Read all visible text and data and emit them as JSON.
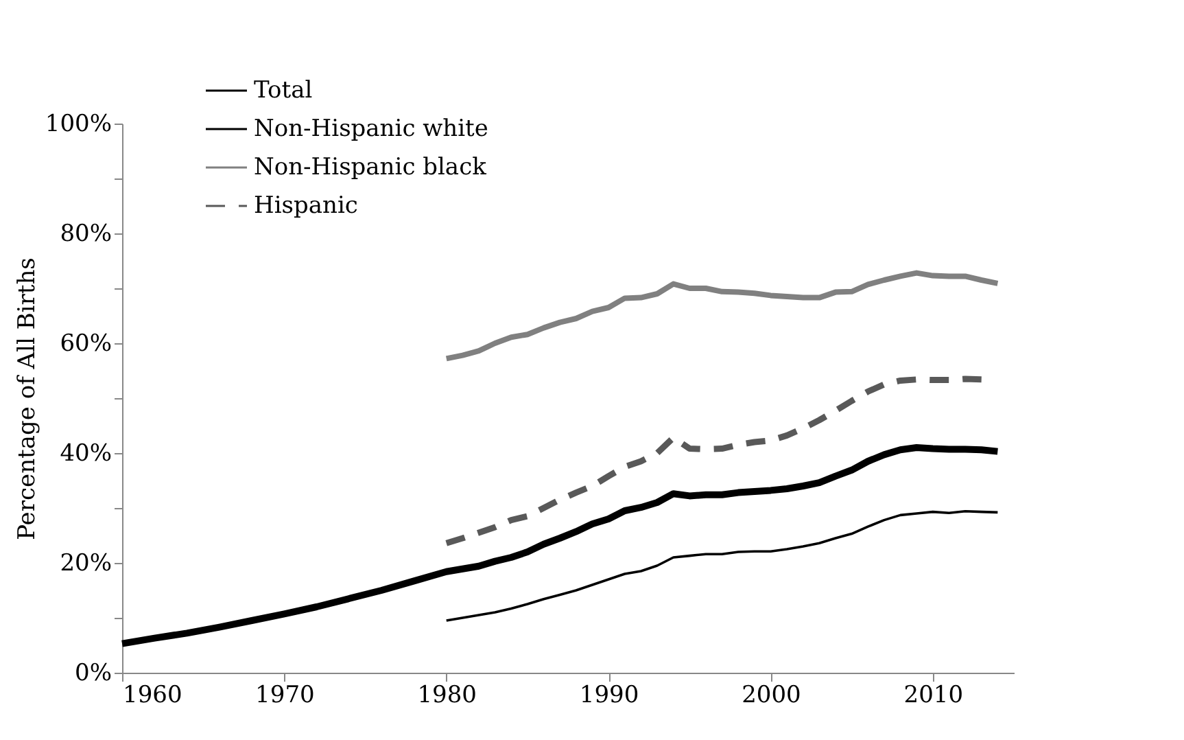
{
  "chart_data": {
    "type": "line",
    "ylabel": "Percentage of All Births",
    "xlim": [
      1960,
      2015
    ],
    "xticks": [
      1960,
      1970,
      1980,
      1990,
      2000,
      2010
    ],
    "ylim": [
      0,
      100
    ],
    "yticks": [
      {
        "value": 0,
        "label": "0%"
      },
      {
        "value": 10,
        "label": null
      },
      {
        "value": 20,
        "label": "20%"
      },
      {
        "value": 30,
        "label": null
      },
      {
        "value": 40,
        "label": "40%"
      },
      {
        "value": 50,
        "label": null
      },
      {
        "value": 60,
        "label": "60%"
      },
      {
        "value": 70,
        "label": null
      },
      {
        "value": 80,
        "label": "80%"
      },
      {
        "value": 90,
        "label": null
      },
      {
        "value": 100,
        "label": "100%"
      }
    ],
    "grid": false,
    "legend": "top left",
    "marker": "none",
    "series": [
      {
        "name": "Total",
        "color": "#000000",
        "line_style": "solid",
        "x": [
          1960,
          1962,
          1964,
          1966,
          1968,
          1970,
          1972,
          1974,
          1976,
          1978,
          1980,
          1981,
          1982,
          1983,
          1984,
          1985,
          1986,
          1987,
          1988,
          1989,
          1990,
          1991,
          1992,
          1993,
          1994,
          1995,
          1996,
          1997,
          1998,
          1999,
          2000,
          2001,
          2002,
          2003,
          2004,
          2005,
          2006,
          2007,
          2008,
          2009,
          2010,
          2011,
          2012,
          2013,
          2014
        ],
        "values": [
          5.3,
          6.3,
          7.2,
          8.3,
          9.5,
          10.7,
          12.0,
          13.5,
          15.0,
          16.7,
          18.4,
          18.9,
          19.4,
          20.3,
          21.0,
          22.0,
          23.4,
          24.5,
          25.7,
          27.1,
          28.0,
          29.5,
          30.1,
          31.0,
          32.6,
          32.2,
          32.4,
          32.4,
          32.8,
          33.0,
          33.2,
          33.5,
          34.0,
          34.6,
          35.8,
          36.9,
          38.5,
          39.7,
          40.6,
          41.0,
          40.8,
          40.7,
          40.7,
          40.6,
          40.3
        ]
      },
      {
        "name": "Non-Hispanic white",
        "color": "#000000",
        "line_style": "solid",
        "x": [
          1980,
          1981,
          1982,
          1983,
          1984,
          1985,
          1986,
          1987,
          1988,
          1989,
          1990,
          1991,
          1992,
          1993,
          1994,
          1995,
          1996,
          1997,
          1998,
          1999,
          2000,
          2001,
          2002,
          2003,
          2004,
          2005,
          2006,
          2007,
          2008,
          2009,
          2010,
          2011,
          2012,
          2013,
          2014
        ],
        "values": [
          9.5,
          10.0,
          10.5,
          11.0,
          11.7,
          12.5,
          13.4,
          14.2,
          15.0,
          16.0,
          17.0,
          18.0,
          18.5,
          19.5,
          21.0,
          21.3,
          21.6,
          21.6,
          22.0,
          22.1,
          22.1,
          22.5,
          23.0,
          23.6,
          24.5,
          25.3,
          26.6,
          27.8,
          28.7,
          29.0,
          29.3,
          29.1,
          29.4,
          29.3,
          29.2
        ]
      },
      {
        "name": "Non-Hispanic black",
        "color": "#808080",
        "line_style": "solid",
        "x": [
          1980,
          1981,
          1982,
          1983,
          1984,
          1985,
          1986,
          1987,
          1988,
          1989,
          1990,
          1991,
          1992,
          1993,
          1994,
          1995,
          1996,
          1997,
          1998,
          1999,
          2000,
          2001,
          2002,
          2003,
          2004,
          2005,
          2006,
          2007,
          2008,
          2009,
          2010,
          2011,
          2012,
          2013,
          2014
        ],
        "values": [
          57.2,
          57.8,
          58.6,
          60.0,
          61.1,
          61.6,
          62.8,
          63.8,
          64.5,
          65.8,
          66.5,
          68.2,
          68.3,
          69.0,
          70.8,
          70.0,
          70.0,
          69.4,
          69.3,
          69.1,
          68.7,
          68.5,
          68.3,
          68.3,
          69.3,
          69.4,
          70.7,
          71.5,
          72.2,
          72.8,
          72.3,
          72.2,
          72.2,
          71.5,
          70.9
        ]
      },
      {
        "name": "Hispanic",
        "color": "#595959",
        "line_style": "dashed",
        "x": [
          1980,
          1981,
          1982,
          1983,
          1984,
          1985,
          1986,
          1987,
          1988,
          1989,
          1990,
          1991,
          1992,
          1993,
          1994,
          1995,
          1996,
          1997,
          1998,
          1999,
          2000,
          2001,
          2002,
          2003,
          2004,
          2005,
          2006,
          2007,
          2008,
          2009,
          2010,
          2011,
          2012,
          2013
        ],
        "values": [
          23.6,
          24.5,
          25.5,
          26.5,
          27.8,
          28.5,
          30.0,
          31.5,
          32.8,
          34.0,
          35.8,
          37.5,
          38.5,
          40.0,
          42.8,
          40.8,
          40.7,
          40.8,
          41.5,
          42.0,
          42.3,
          43.2,
          44.5,
          46.0,
          47.7,
          49.5,
          51.2,
          52.5,
          53.2,
          53.4,
          53.3,
          53.3,
          53.5,
          53.4
        ]
      }
    ]
  }
}
